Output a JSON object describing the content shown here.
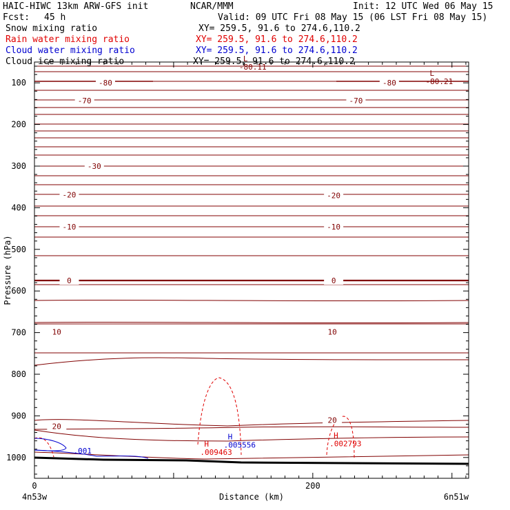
{
  "header": {
    "title_left": "HAIC-HIWC 13km ARW-GFS init",
    "org": "NCAR/MMM",
    "init": "Init: 12 UTC Wed 06 May 15",
    "fcst_label": "Fcst:",
    "fcst_value": "45 h",
    "valid": "Valid: 09 UTC Fri 08 May 15 (06 LST Fri 08 May 15)",
    "fields": [
      {
        "name": "Snow mixing ratio",
        "color": "#000000",
        "xy": "XY= 259.5, 91.6 to 274.6,110.2"
      },
      {
        "name": "Rain water mixing ratio",
        "color": "#e00000",
        "xy": "XY= 259.5, 91.6 to 274.6,110.2"
      },
      {
        "name": "Cloud water mixing ratio",
        "color": "#0000d0",
        "xy": "XY= 259.5, 91.6 to 274.6,110.2"
      },
      {
        "name": "Cloud ice mixing ratio",
        "color": "#000000",
        "xy": "XY= 259.5, 91.6 to 274.6,110.2"
      }
    ]
  },
  "chart_data": {
    "type": "cross-section",
    "xlabel": "Distance (km)",
    "ylabel": "Pressure (hPa)",
    "x_ticks": [
      0,
      200
    ],
    "x_range": [
      0,
      312
    ],
    "y_ticks": [
      100,
      200,
      300,
      400,
      500,
      600,
      700,
      800,
      900,
      1000
    ],
    "y_range": [
      50,
      1050
    ],
    "endpoint_left": "4n53w",
    "endpoint_right": "6n51w",
    "contour_color": "#800000",
    "temperature_contour_labels": [
      {
        "label": "-80",
        "x": 51,
        "p": 100
      },
      {
        "label": "-80",
        "x": 255,
        "p": 100
      },
      {
        "label": "-70",
        "x": 36,
        "p": 143
      },
      {
        "label": "-70",
        "x": 231,
        "p": 143
      },
      {
        "label": "-30",
        "x": 43,
        "p": 300
      },
      {
        "label": "-20",
        "x": 25,
        "p": 369
      },
      {
        "label": "-20",
        "x": 215,
        "p": 370
      },
      {
        "label": "-10",
        "x": 25,
        "p": 446
      },
      {
        "label": "-10",
        "x": 215,
        "p": 446
      },
      {
        "label": "0",
        "x": 25,
        "p": 575
      },
      {
        "label": "0",
        "x": 215,
        "p": 575
      },
      {
        "label": "10",
        "x": 16,
        "p": 698
      },
      {
        "label": "10",
        "x": 214,
        "p": 698
      },
      {
        "label": "20",
        "x": 16,
        "p": 925
      },
      {
        "label": "20",
        "x": 214,
        "p": 910
      }
    ],
    "extrema": [
      {
        "kind": "L",
        "value": "-80.11",
        "x": 150,
        "p": 65
      },
      {
        "kind": "L",
        "value": "-80.21",
        "x": 284,
        "p": 100
      },
      {
        "kind": "H",
        "value": ".009463",
        "x": 122,
        "p": 990,
        "field": "Rain water mixing ratio"
      },
      {
        "kind": "H",
        "value": ".005556",
        "x": 139,
        "p": 973,
        "field": "Cloud water mixing ratio"
      },
      {
        "kind": "H",
        "value": ".002793",
        "x": 215,
        "p": 970,
        "field": "Rain water mixing ratio"
      }
    ],
    "cloud_water_label": ".001",
    "cloud_water_label_pos": {
      "x": 28,
      "p": 990
    }
  }
}
